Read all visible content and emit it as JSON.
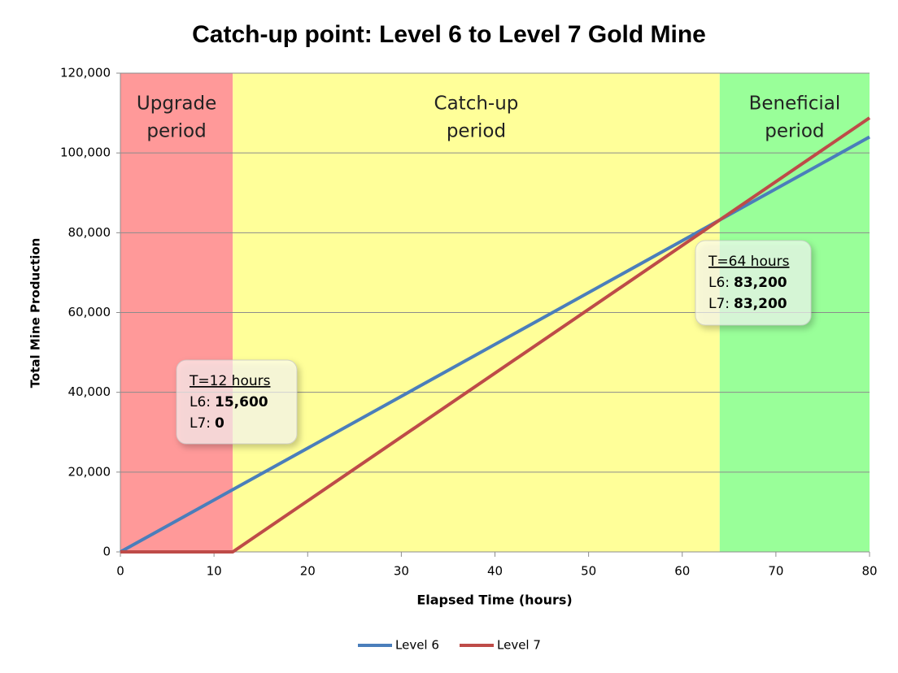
{
  "chart_data": {
    "type": "line",
    "title": "Catch-up point: Level 6 to Level 7 Gold Mine",
    "x_label": "Elapsed Time (hours)",
    "y_label": "Total Mine Production",
    "x": [
      0,
      12,
      64,
      80
    ],
    "series": [
      {
        "name": "Level 6",
        "color": "#4a7ebb",
        "values": [
          0,
          15600,
          83200,
          104000
        ]
      },
      {
        "name": "Level 7",
        "color": "#be4b48",
        "values": [
          0,
          0,
          83200,
          108800
        ]
      }
    ],
    "xlim": [
      0,
      80
    ],
    "xticks": [
      0,
      10,
      20,
      30,
      40,
      50,
      60,
      70,
      80
    ],
    "ylim": [
      0,
      120000
    ],
    "yticks": [
      0,
      {
        "value": 20000,
        "label": "20,000"
      },
      {
        "value": 40000,
        "label": "40,000"
      },
      {
        "value": 60000,
        "label": "60,000"
      },
      {
        "value": 80000,
        "label": "80,000"
      },
      {
        "value": 100000,
        "label": "100,000"
      },
      {
        "value": 120000,
        "label": "120,000"
      }
    ],
    "grid": true,
    "legend": "bottom",
    "regions": [
      {
        "from": 0,
        "to": 12,
        "color": "#ff9999",
        "label_lines": [
          "Upgrade",
          "period"
        ]
      },
      {
        "from": 12,
        "to": 64,
        "color": "#ffff99",
        "label_lines": [
          "Catch-up",
          "period"
        ]
      },
      {
        "from": 64,
        "to": 80,
        "color": "#99ff99",
        "label_lines": [
          "Beneficial",
          "period"
        ]
      }
    ],
    "annotations": [
      {
        "title": "T=12 hours",
        "lines": [
          {
            "label": "L6:",
            "value": "15,600"
          },
          {
            "label": "L7:",
            "value": "0"
          }
        ]
      },
      {
        "title": "T=64 hours",
        "lines": [
          {
            "label": "L6:",
            "value": "83,200"
          },
          {
            "label": "L7:",
            "value": "83,200"
          }
        ]
      }
    ]
  }
}
